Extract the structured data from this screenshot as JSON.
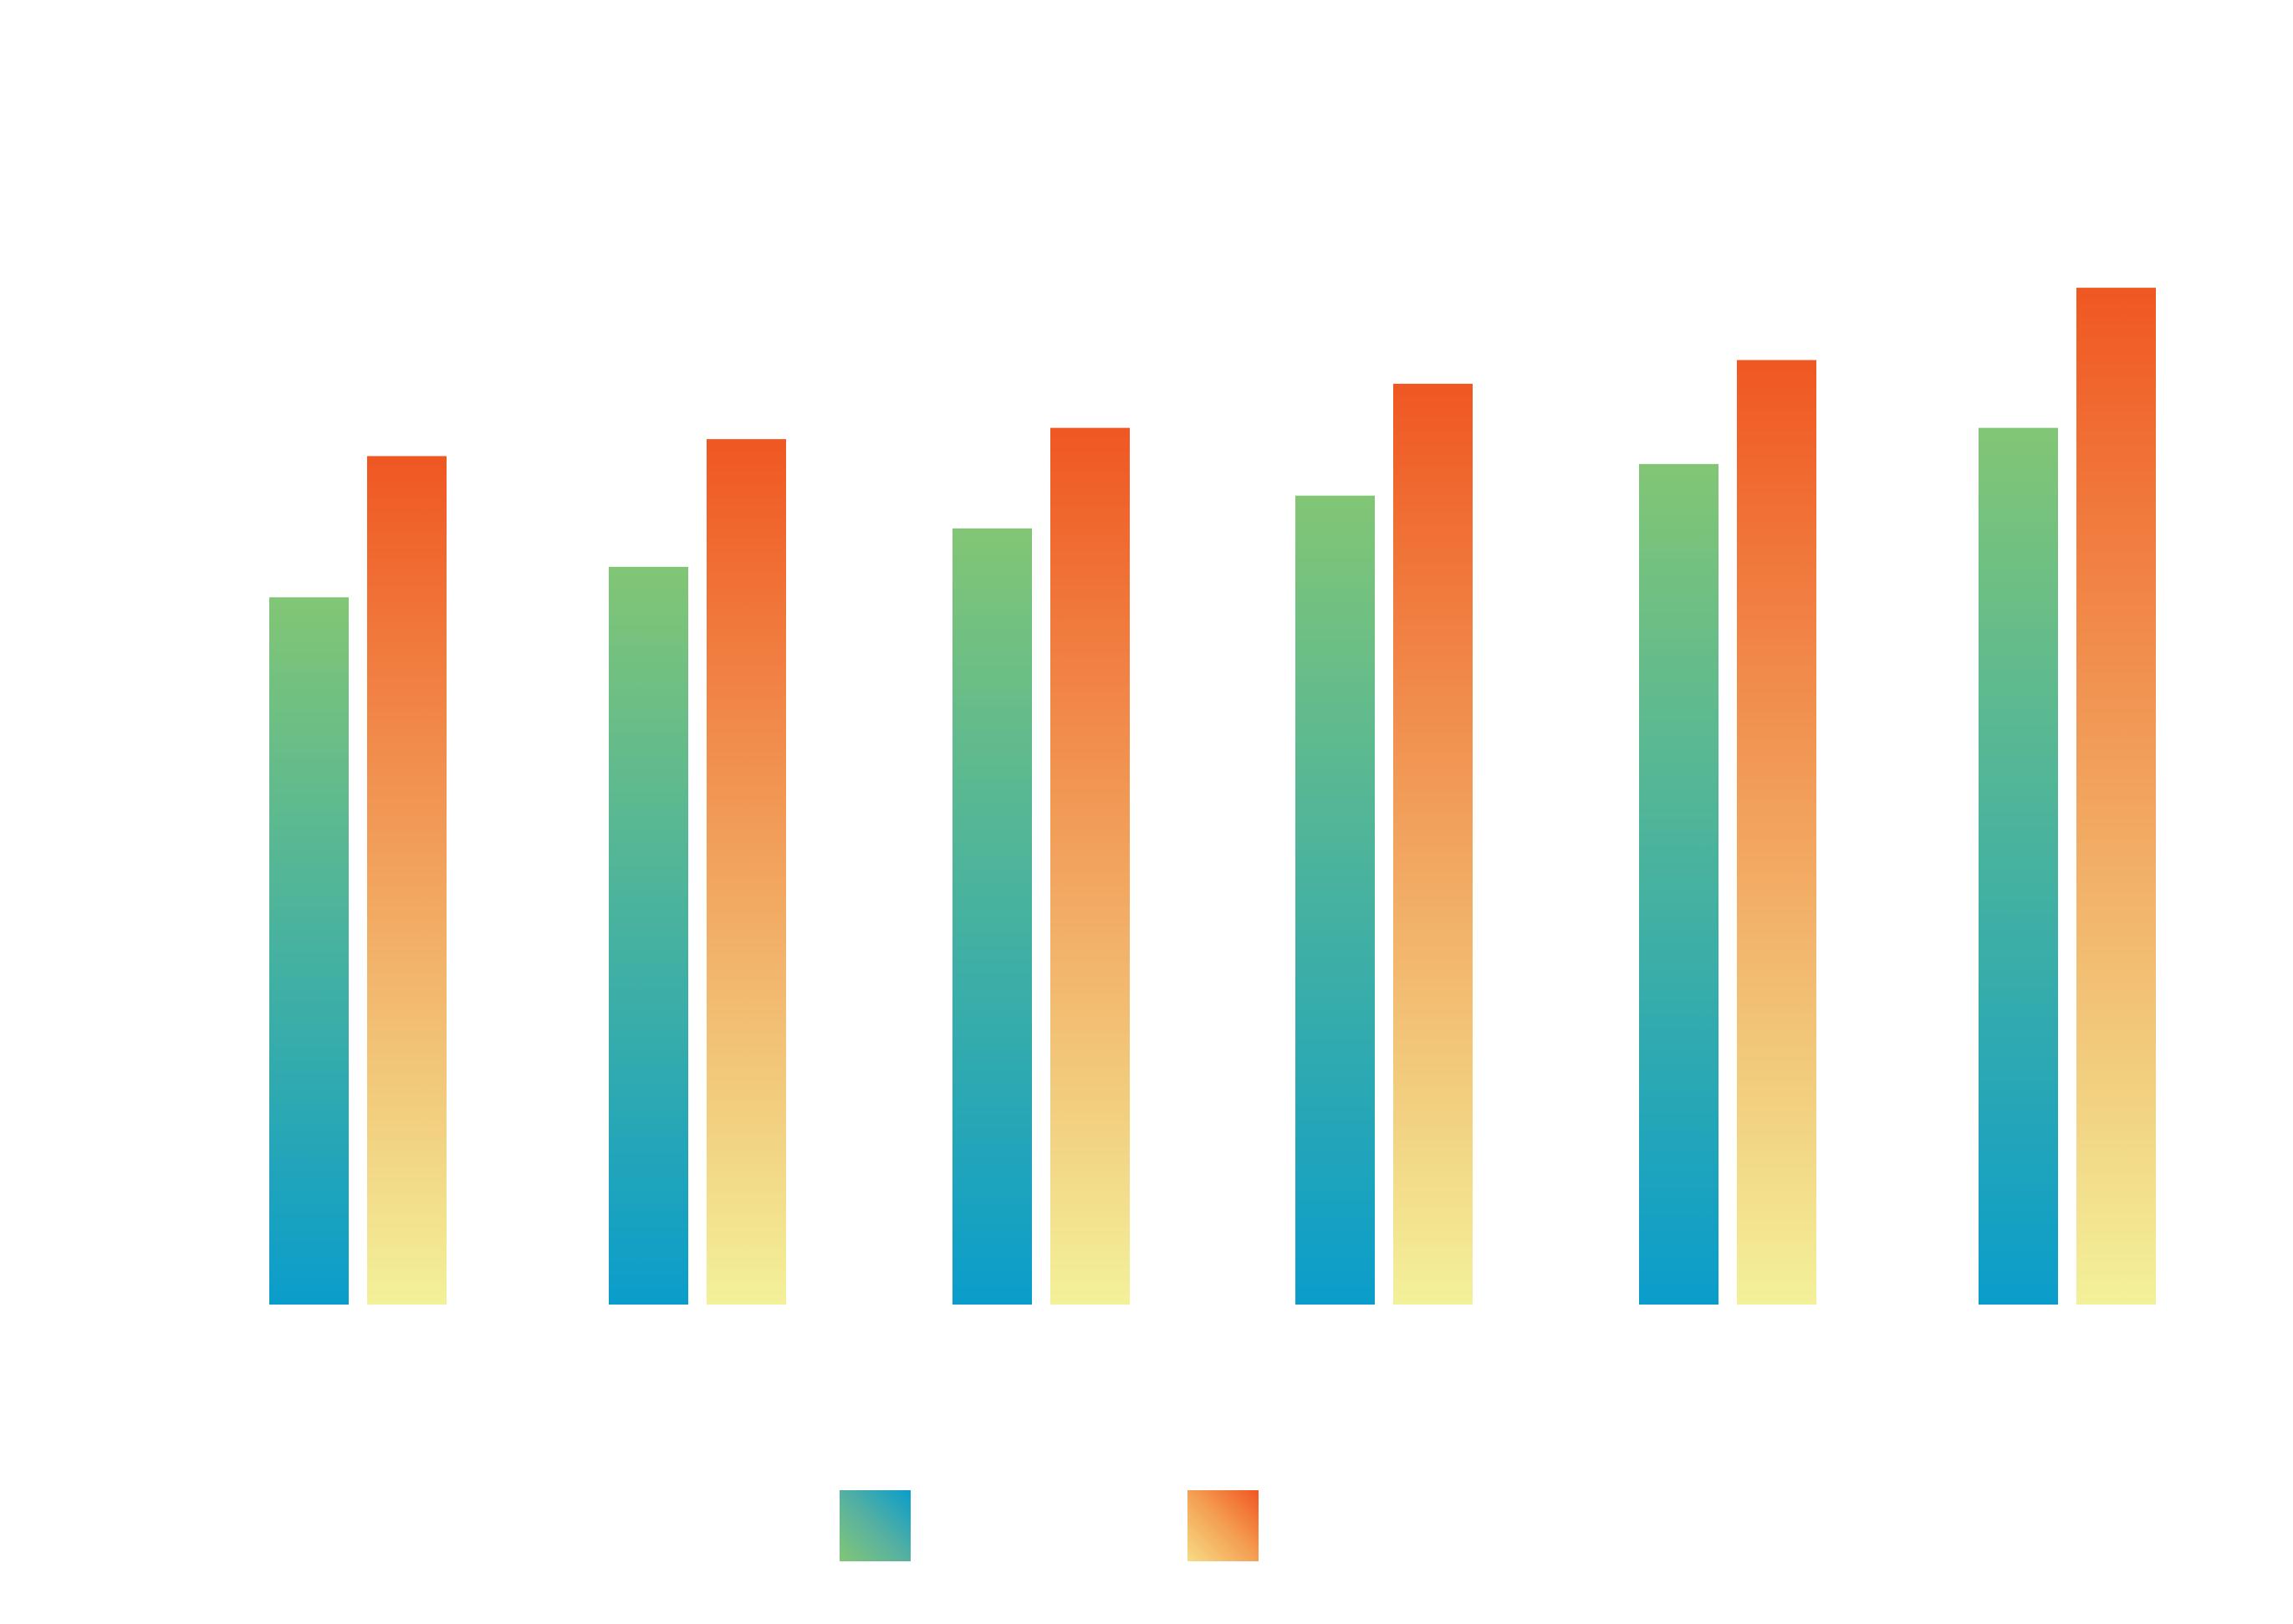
{
  "chart_data": {
    "type": "bar",
    "title": "",
    "xlabel": "",
    "ylabel": "",
    "categories": [
      "",
      "",
      "",
      "",
      "",
      ""
    ],
    "ylim": [
      0,
      100
    ],
    "grid": false,
    "legend_position": "bottom-center",
    "series": [
      {
        "name": "",
        "values": [
          62.6,
          65.3,
          68.7,
          71.6,
          74.4,
          77.6
        ],
        "gradient_top": "#82C675",
        "gradient_bottom": "#0A9DCB"
      },
      {
        "name": "",
        "values": [
          75.1,
          76.6,
          77.6,
          81.5,
          83.6,
          90.0
        ],
        "gradient_top": "#F05722",
        "gradient_bottom": "#F3F19A"
      }
    ]
  }
}
